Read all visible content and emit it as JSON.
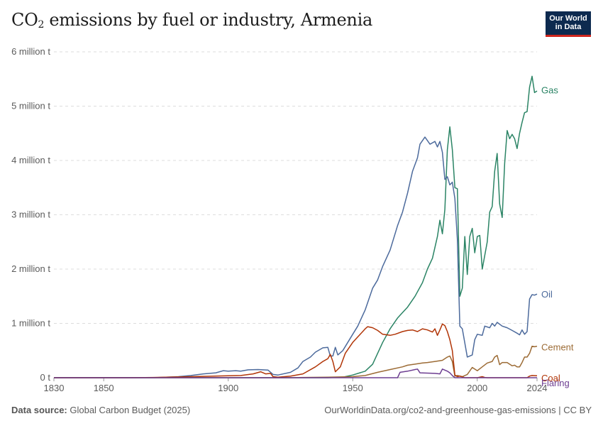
{
  "header": {
    "title_main": "CO",
    "title_sub": "2",
    "title_rest": " emissions by fuel or industry, Armenia",
    "logo_line1": "Our World",
    "logo_line2": "in Data"
  },
  "footer": {
    "source_label": "Data source:",
    "source_text": " Global Carbon Budget (2025)",
    "link_text": "OurWorldinData.org/co2-and-greenhouse-gas-emissions | CC BY"
  },
  "chart_data": {
    "type": "line",
    "title": "CO₂ emissions by fuel or industry, Armenia",
    "xlim": [
      1830,
      2024
    ],
    "ylim": [
      0,
      6000000
    ],
    "y_ticks": [
      {
        "value": 0,
        "label": "0 t"
      },
      {
        "value": 1000000,
        "label": "1 million t"
      },
      {
        "value": 2000000,
        "label": "2 million t"
      },
      {
        "value": 3000000,
        "label": "3 million t"
      },
      {
        "value": 4000000,
        "label": "4 million t"
      },
      {
        "value": 5000000,
        "label": "5 million t"
      },
      {
        "value": 6000000,
        "label": "6 million t"
      }
    ],
    "x_ticks": [
      {
        "value": 1830,
        "label": "1830"
      },
      {
        "value": 1850,
        "label": "1850"
      },
      {
        "value": 1900,
        "label": "1900"
      },
      {
        "value": 1950,
        "label": "1950"
      },
      {
        "value": 2000,
        "label": "2000"
      },
      {
        "value": 2024,
        "label": "2024"
      }
    ],
    "series": [
      {
        "name": "Gas",
        "color": "#2b8465",
        "label_value": 5300000,
        "points": [
          [
            1830,
            0
          ],
          [
            1940,
            0
          ],
          [
            1946,
            10000
          ],
          [
            1950,
            50000
          ],
          [
            1955,
            120000
          ],
          [
            1958,
            250000
          ],
          [
            1962,
            650000
          ],
          [
            1965,
            900000
          ],
          [
            1968,
            1100000
          ],
          [
            1970,
            1200000
          ],
          [
            1972,
            1300000
          ],
          [
            1975,
            1500000
          ],
          [
            1978,
            1750000
          ],
          [
            1980,
            2000000
          ],
          [
            1982,
            2200000
          ],
          [
            1984,
            2600000
          ],
          [
            1985,
            2900000
          ],
          [
            1986,
            2650000
          ],
          [
            1987,
            3100000
          ],
          [
            1988,
            4200000
          ],
          [
            1989,
            4620000
          ],
          [
            1990,
            4200000
          ],
          [
            1991,
            3500000
          ],
          [
            1992,
            3480000
          ],
          [
            1993,
            1500000
          ],
          [
            1994,
            1650000
          ],
          [
            1995,
            2600000
          ],
          [
            1996,
            1900000
          ],
          [
            1997,
            2600000
          ],
          [
            1998,
            2750000
          ],
          [
            1999,
            2300000
          ],
          [
            2000,
            2600000
          ],
          [
            2001,
            2620000
          ],
          [
            2002,
            2000000
          ],
          [
            2004,
            2500000
          ],
          [
            2005,
            3050000
          ],
          [
            2006,
            3150000
          ],
          [
            2007,
            3800000
          ],
          [
            2008,
            4130000
          ],
          [
            2009,
            3200000
          ],
          [
            2010,
            2950000
          ],
          [
            2011,
            3950000
          ],
          [
            2012,
            4550000
          ],
          [
            2013,
            4400000
          ],
          [
            2014,
            4480000
          ],
          [
            2015,
            4400000
          ],
          [
            2016,
            4220000
          ],
          [
            2017,
            4500000
          ],
          [
            2018,
            4700000
          ],
          [
            2019,
            4880000
          ],
          [
            2020,
            4900000
          ],
          [
            2021,
            5350000
          ],
          [
            2022,
            5550000
          ],
          [
            2023,
            5250000
          ],
          [
            2024,
            5280000
          ]
        ]
      },
      {
        "name": "Oil",
        "color": "#4c6a9c",
        "label_value": 1540000,
        "points": [
          [
            1830,
            0
          ],
          [
            1870,
            0
          ],
          [
            1880,
            20000
          ],
          [
            1885,
            40000
          ],
          [
            1890,
            70000
          ],
          [
            1895,
            90000
          ],
          [
            1898,
            130000
          ],
          [
            1900,
            120000
          ],
          [
            1903,
            130000
          ],
          [
            1905,
            120000
          ],
          [
            1908,
            145000
          ],
          [
            1912,
            150000
          ],
          [
            1916,
            140000
          ],
          [
            1918,
            60000
          ],
          [
            1920,
            50000
          ],
          [
            1925,
            100000
          ],
          [
            1928,
            180000
          ],
          [
            1930,
            300000
          ],
          [
            1933,
            380000
          ],
          [
            1935,
            470000
          ],
          [
            1938,
            550000
          ],
          [
            1940,
            560000
          ],
          [
            1941,
            400000
          ],
          [
            1942,
            400000
          ],
          [
            1943,
            560000
          ],
          [
            1944,
            420000
          ],
          [
            1946,
            500000
          ],
          [
            1948,
            650000
          ],
          [
            1950,
            800000
          ],
          [
            1952,
            950000
          ],
          [
            1955,
            1250000
          ],
          [
            1958,
            1650000
          ],
          [
            1960,
            1800000
          ],
          [
            1962,
            2050000
          ],
          [
            1965,
            2350000
          ],
          [
            1968,
            2800000
          ],
          [
            1970,
            3050000
          ],
          [
            1972,
            3400000
          ],
          [
            1974,
            3800000
          ],
          [
            1976,
            4050000
          ],
          [
            1977,
            4300000
          ],
          [
            1979,
            4430000
          ],
          [
            1981,
            4300000
          ],
          [
            1983,
            4350000
          ],
          [
            1984,
            4250000
          ],
          [
            1985,
            4350000
          ],
          [
            1986,
            4150000
          ],
          [
            1987,
            3650000
          ],
          [
            1988,
            3700000
          ],
          [
            1989,
            3550000
          ],
          [
            1990,
            3600000
          ],
          [
            1991,
            3300000
          ],
          [
            1992,
            2550000
          ],
          [
            1993,
            950000
          ],
          [
            1994,
            900000
          ],
          [
            1996,
            380000
          ],
          [
            1998,
            420000
          ],
          [
            1999,
            700000
          ],
          [
            2000,
            800000
          ],
          [
            2002,
            780000
          ],
          [
            2003,
            950000
          ],
          [
            2005,
            920000
          ],
          [
            2006,
            1000000
          ],
          [
            2007,
            950000
          ],
          [
            2008,
            1020000
          ],
          [
            2010,
            950000
          ],
          [
            2012,
            920000
          ],
          [
            2014,
            870000
          ],
          [
            2016,
            820000
          ],
          [
            2017,
            790000
          ],
          [
            2018,
            880000
          ],
          [
            2019,
            800000
          ],
          [
            2020,
            850000
          ],
          [
            2021,
            1450000
          ],
          [
            2022,
            1530000
          ],
          [
            2023,
            1520000
          ],
          [
            2024,
            1540000
          ]
        ]
      },
      {
        "name": "Cement",
        "color": "#9c6b35",
        "label_value": 570000,
        "points": [
          [
            1830,
            0
          ],
          [
            1925,
            0
          ],
          [
            1930,
            5000
          ],
          [
            1940,
            10000
          ],
          [
            1945,
            15000
          ],
          [
            1950,
            20000
          ],
          [
            1955,
            40000
          ],
          [
            1960,
            100000
          ],
          [
            1965,
            150000
          ],
          [
            1970,
            200000
          ],
          [
            1972,
            230000
          ],
          [
            1975,
            250000
          ],
          [
            1978,
            270000
          ],
          [
            1980,
            280000
          ],
          [
            1983,
            300000
          ],
          [
            1986,
            320000
          ],
          [
            1988,
            380000
          ],
          [
            1989,
            400000
          ],
          [
            1990,
            300000
          ],
          [
            1991,
            30000
          ],
          [
            1992,
            40000
          ],
          [
            1994,
            20000
          ],
          [
            1996,
            60000
          ],
          [
            1998,
            190000
          ],
          [
            2000,
            130000
          ],
          [
            2002,
            200000
          ],
          [
            2004,
            270000
          ],
          [
            2006,
            300000
          ],
          [
            2007,
            380000
          ],
          [
            2008,
            410000
          ],
          [
            2009,
            240000
          ],
          [
            2010,
            280000
          ],
          [
            2012,
            280000
          ],
          [
            2014,
            220000
          ],
          [
            2015,
            230000
          ],
          [
            2016,
            200000
          ],
          [
            2017,
            200000
          ],
          [
            2018,
            280000
          ],
          [
            2019,
            380000
          ],
          [
            2020,
            380000
          ],
          [
            2021,
            450000
          ],
          [
            2022,
            580000
          ],
          [
            2023,
            570000
          ],
          [
            2024,
            580000
          ]
        ]
      },
      {
        "name": "Coal",
        "color": "#b13507",
        "label_value": 0,
        "points": [
          [
            1830,
            0
          ],
          [
            1860,
            0
          ],
          [
            1870,
            5000
          ],
          [
            1880,
            15000
          ],
          [
            1890,
            25000
          ],
          [
            1900,
            35000
          ],
          [
            1905,
            40000
          ],
          [
            1910,
            70000
          ],
          [
            1913,
            110000
          ],
          [
            1915,
            70000
          ],
          [
            1917,
            80000
          ],
          [
            1918,
            20000
          ],
          [
            1920,
            10000
          ],
          [
            1925,
            30000
          ],
          [
            1930,
            70000
          ],
          [
            1935,
            200000
          ],
          [
            1938,
            300000
          ],
          [
            1940,
            350000
          ],
          [
            1941,
            430000
          ],
          [
            1942,
            300000
          ],
          [
            1943,
            110000
          ],
          [
            1945,
            200000
          ],
          [
            1947,
            450000
          ],
          [
            1950,
            650000
          ],
          [
            1953,
            800000
          ],
          [
            1955,
            900000
          ],
          [
            1956,
            940000
          ],
          [
            1958,
            920000
          ],
          [
            1960,
            870000
          ],
          [
            1962,
            800000
          ],
          [
            1965,
            780000
          ],
          [
            1967,
            800000
          ],
          [
            1970,
            850000
          ],
          [
            1972,
            870000
          ],
          [
            1974,
            880000
          ],
          [
            1976,
            850000
          ],
          [
            1978,
            900000
          ],
          [
            1980,
            880000
          ],
          [
            1982,
            840000
          ],
          [
            1983,
            900000
          ],
          [
            1984,
            780000
          ],
          [
            1985,
            880000
          ],
          [
            1986,
            990000
          ],
          [
            1987,
            960000
          ],
          [
            1988,
            850000
          ],
          [
            1989,
            700000
          ],
          [
            1990,
            500000
          ],
          [
            1991,
            50000
          ],
          [
            1992,
            20000
          ],
          [
            1993,
            30000
          ],
          [
            1995,
            0
          ],
          [
            2000,
            0
          ],
          [
            2002,
            20000
          ],
          [
            2003,
            5000
          ],
          [
            2004,
            0
          ],
          [
            2020,
            0
          ],
          [
            2021,
            30000
          ],
          [
            2022,
            40000
          ],
          [
            2024,
            35000
          ]
        ]
      },
      {
        "name": "Flaring",
        "color": "#6d3e91",
        "label_value": -90000,
        "points": [
          [
            1830,
            0
          ],
          [
            1968,
            0
          ],
          [
            1969,
            100000
          ],
          [
            1972,
            120000
          ],
          [
            1975,
            150000
          ],
          [
            1976,
            160000
          ],
          [
            1977,
            90000
          ],
          [
            1980,
            85000
          ],
          [
            1983,
            80000
          ],
          [
            1985,
            70000
          ],
          [
            1986,
            160000
          ],
          [
            1988,
            120000
          ],
          [
            1989,
            90000
          ],
          [
            1990,
            40000
          ],
          [
            1991,
            0
          ],
          [
            2024,
            0
          ]
        ]
      }
    ]
  }
}
